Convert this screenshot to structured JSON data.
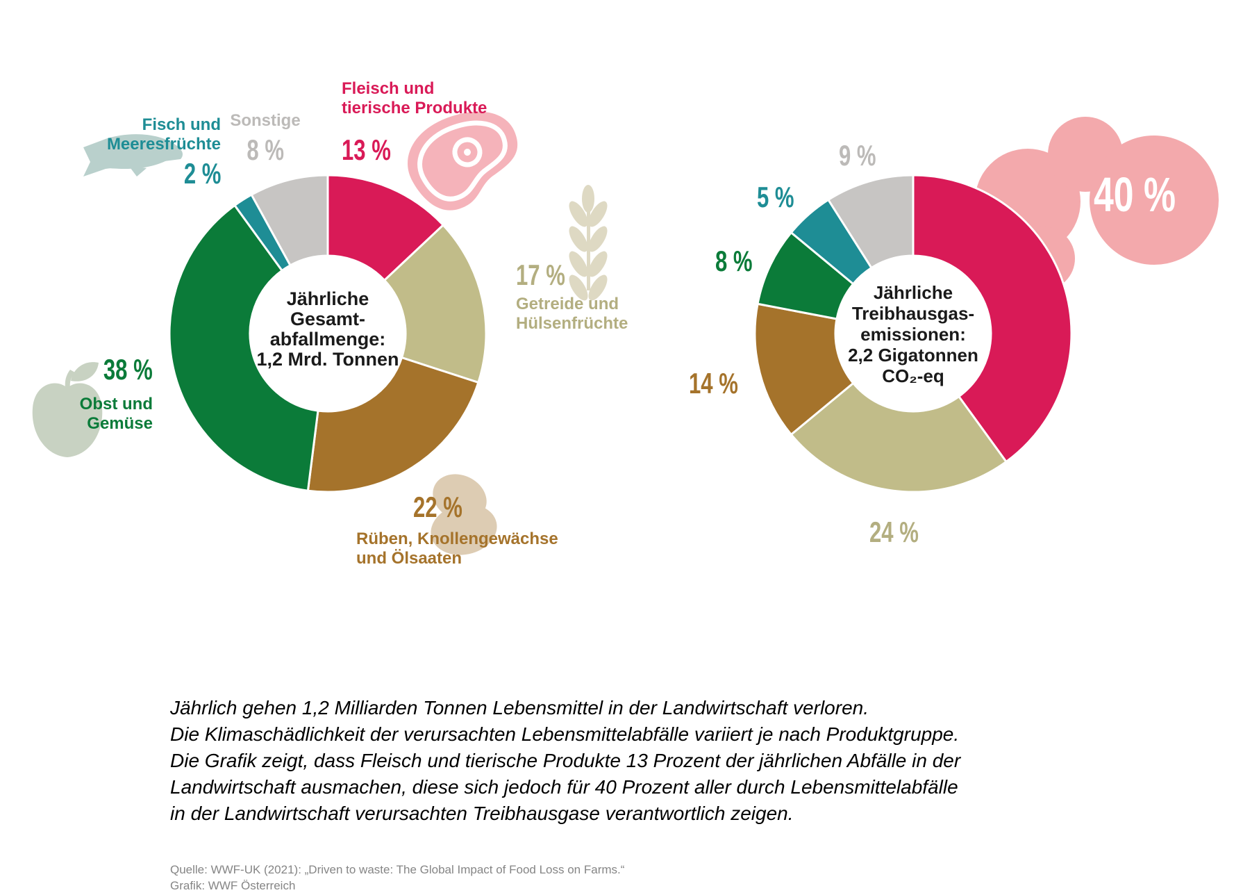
{
  "chart_data": [
    {
      "type": "pie",
      "subtype": "donut",
      "title": "Jährliche Gesamtabfallmenge: 1,2 Mrd. Tonnen",
      "center_label_lines": [
        "Jährliche",
        "Gesamt-",
        "abfallmenge:",
        "1,2 Mrd. Tonnen"
      ],
      "categories": [
        "Fleisch und tierische Produkte",
        "Getreide und Hülsenfrüchte",
        "Rüben, Knollengewächse und Ölsaaten",
        "Obst und Gemüse",
        "Fisch und Meeresfrüchte",
        "Sonstige"
      ],
      "values": [
        13,
        17,
        22,
        38,
        2,
        8
      ],
      "unit": "%",
      "colors": [
        "#d91a57",
        "#c1bc89",
        "#a5732b",
        "#0b7b39",
        "#1e8d95",
        "#c7c5c3"
      ],
      "start_angle_deg": 0,
      "direction": "clockwise",
      "legend_position": "around-donut"
    },
    {
      "type": "pie",
      "subtype": "donut",
      "title": "Jährliche Treibhausgasemissionen: 2,2 Gigatonnen CO₂-eq",
      "center_label_lines": [
        "Jährliche",
        "Treibhausgas-",
        "emissionen:",
        "2,2 Gigatonnen",
        "CO₂-eq"
      ],
      "categories": [
        "Fleisch und tierische Produkte",
        "Getreide und Hülsenfrüchte",
        "Rüben, Knollengewächse und Ölsaaten",
        "Obst und Gemüse",
        "Fisch und Meeresfrüchte",
        "Sonstige"
      ],
      "values": [
        40,
        24,
        14,
        8,
        5,
        9
      ],
      "unit": "%",
      "colors": [
        "#d91a57",
        "#c1bc89",
        "#a5732b",
        "#0b7b39",
        "#1e8d95",
        "#c7c5c3"
      ],
      "start_angle_deg": 0,
      "direction": "clockwise",
      "legend_position": "around-donut"
    }
  ],
  "palette": {
    "crimson": "#d91a57",
    "tan": "#c1bc89",
    "brown": "#a5732b",
    "green": "#0b7b39",
    "teal": "#1e8d95",
    "gray": "#c7c5c3",
    "pink_blob": "#f3a9ac",
    "steak_pink": "#f5b3ba",
    "fish_icon": "#b9d0cc",
    "apple_icon": "#c8d2c2",
    "wheat_icon": "#ded9c3",
    "potato_icon": "#ddccb3"
  },
  "callouts": {
    "fisch": {
      "l1": "Fisch und",
      "l2": "Meeresfrüchte",
      "pct": "2 %"
    },
    "sonstige": {
      "l1": "Sonstige",
      "pct": "8 %"
    },
    "fleisch": {
      "l1": "Fleisch und",
      "l2": "tierische Produkte",
      "pct": "13 %"
    },
    "getreide": {
      "pct": "17 %",
      "l1": "Getreide und",
      "l2": "Hülsenfrüchte"
    },
    "obst": {
      "pct": "38 %",
      "l1": "Obst und",
      "l2": "Gemüse"
    },
    "rueben": {
      "pct": "22 %",
      "l1": "Rüben, Knollengewächse",
      "l2": "und Ölsaaten"
    }
  },
  "right_pcts": {
    "p40": "40 %",
    "p24": "24 %",
    "p14": "14 %",
    "p8": "8 %",
    "p5": "5 %",
    "p9": "9 %"
  },
  "description": {
    "lines": [
      "Jährlich gehen 1,2 Milliarden Tonnen Lebensmittel in der Landwirtschaft verloren.",
      "Die Klimaschädlichkeit der verursachten Lebensmittelabfälle variiert je nach Produktgruppe.",
      "Die Grafik zeigt, dass Fleisch und tierische Produkte 13 Prozent  der jährlichen Abfälle in der",
      "Landwirtschaft ausmachen, diese sich jedoch für 40 Prozent aller durch Lebensmittelabfälle",
      "in der Landwirtschaft verursachten Treibhausgase verantwortlich zeigen."
    ]
  },
  "source": {
    "line1": "Quelle: WWF-UK (2021): „Driven to waste: The Global Impact of Food Loss on Farms.“",
    "line2": "Grafik: WWF Österreich"
  }
}
